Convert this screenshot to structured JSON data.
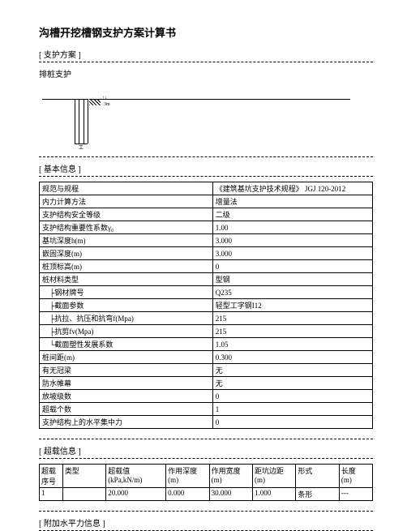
{
  "title": "沟槽开挖槽钢支护方案计算书",
  "sections": {
    "scheme": {
      "head": "[ 支护方案 ]",
      "text": "排桩支护"
    },
    "basic": {
      "head": "[ 基本信息 ]"
    },
    "load": {
      "head": "[ 超载信息 ]"
    },
    "water": {
      "head": "[ 附加水平力信息 ]"
    }
  },
  "diagram": {
    "beam": "工",
    "arrow": "↑↓",
    "dim": "3m"
  },
  "basic_rows": [
    {
      "k": "规范与规程",
      "v": "《建筑基坑支护技术规程》 JGJ 120-2012"
    },
    {
      "k": "内力计算方法",
      "v": "增量法"
    },
    {
      "k": "支护结构安全等级",
      "v": "二级"
    },
    {
      "k": "支护结构重要性系数γ₀",
      "v": "1.00"
    },
    {
      "k": "基坑深度h(m)",
      "v": "3.000"
    },
    {
      "k": "嵌固深度(m)",
      "v": "3.000"
    },
    {
      "k": "桩顶标高(m)",
      "v": "0"
    },
    {
      "k": "桩材料类型",
      "v": "型钢"
    },
    {
      "k": "├钢材牌号",
      "v": "Q235",
      "indent": true
    },
    {
      "k": "├截面参数",
      "v": "轻型工字钢I12",
      "indent": true
    },
    {
      "k": "├抗拉、抗压和抗弯f(Mpa)",
      "v": "215",
      "indent": true
    },
    {
      "k": "├抗剪fv(Mpa)",
      "v": "215",
      "indent": true
    },
    {
      "k": "└截面塑性发展系数",
      "v": "1.05",
      "indent": true
    },
    {
      "k": "桩间距(m)",
      "v": "0.300"
    },
    {
      "k": "有无冠梁",
      "v": "无"
    },
    {
      "k": "防水帷幕",
      "v": "无"
    },
    {
      "k": "放坡级数",
      "v": "0"
    },
    {
      "k": "超载个数",
      "v": "1"
    },
    {
      "k": "支护结构上的水平集中力",
      "v": "0"
    }
  ],
  "load_table": {
    "headers": [
      {
        "l1": "超载",
        "l2": "序号"
      },
      {
        "l1": "类型",
        "l2": ""
      },
      {
        "l1": "超载值",
        "l2": "(kPa,kN/m)"
      },
      {
        "l1": "作用深度",
        "l2": "(m)"
      },
      {
        "l1": "作用宽度",
        "l2": "(m)"
      },
      {
        "l1": "距坑边距",
        "l2": "(m)"
      },
      {
        "l1": "形式",
        "l2": ""
      },
      {
        "l1": "长度",
        "l2": "(m)"
      }
    ],
    "row": [
      "1",
      "",
      "20.000",
      "0.000",
      "30.000",
      "1.000",
      "条形",
      "---"
    ]
  }
}
